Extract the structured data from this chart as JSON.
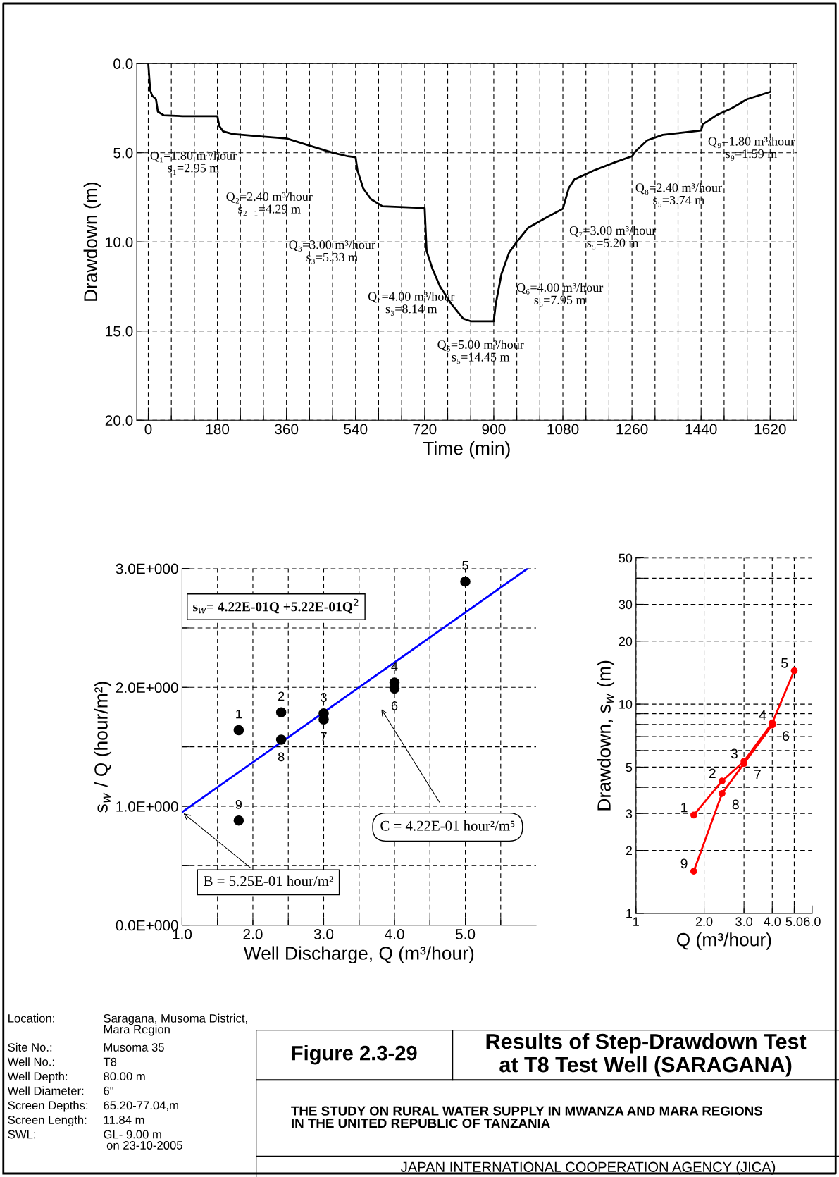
{
  "chart_data": [
    {
      "type": "line",
      "xlabel": "Time (min)",
      "ylabel": "Drawdown (m)",
      "x": [
        0,
        5,
        10,
        20,
        25,
        40,
        90,
        180,
        185,
        195,
        220,
        300,
        360,
        420,
        480,
        520,
        540,
        545,
        560,
        580,
        610,
        720,
        725,
        740,
        760,
        790,
        820,
        840,
        900,
        905,
        920,
        940,
        960,
        990,
        1040,
        1080,
        1095,
        1110,
        1160,
        1220,
        1260,
        1270,
        1300,
        1340,
        1440,
        1445,
        1480,
        1520,
        1560,
        1620
      ],
      "series": [
        {
          "color": "#000000",
          "values": [
            0,
            1.5,
            1.8,
            2.0,
            2.7,
            2.9,
            2.95,
            2.95,
            3.5,
            3.8,
            3.95,
            4.1,
            4.2,
            4.6,
            5.0,
            5.2,
            5.25,
            6.0,
            7.0,
            7.6,
            8.0,
            8.1,
            10.5,
            11.5,
            12.5,
            13.5,
            14.3,
            14.45,
            14.45,
            13.5,
            11.8,
            10.6,
            10.0,
            9.2,
            8.6,
            8.14,
            7.0,
            6.5,
            6.0,
            5.5,
            5.2,
            4.9,
            4.3,
            4.0,
            3.75,
            3.4,
            2.9,
            2.5,
            2.0,
            1.59
          ]
        }
      ],
      "xlim": [
        -30,
        1690
      ],
      "ylim": [
        20,
        0
      ],
      "xticks": [
        0,
        {
          "value": 60,
          "label": null
        },
        {
          "value": 120,
          "label": null
        },
        180,
        {
          "value": 240,
          "label": null
        },
        {
          "value": 300,
          "label": null
        },
        360,
        {
          "value": 420,
          "label": null
        },
        {
          "value": 480,
          "label": null
        },
        540,
        {
          "value": 600,
          "label": null
        },
        {
          "value": 660,
          "label": null
        },
        720,
        {
          "value": 780,
          "label": null
        },
        {
          "value": 840,
          "label": null
        },
        900,
        {
          "value": 960,
          "label": null
        },
        {
          "value": 1020,
          "label": null
        },
        1080,
        {
          "value": 1140,
          "label": null
        },
        {
          "value": 1200,
          "label": null
        },
        1260,
        {
          "value": 1320,
          "label": null
        },
        {
          "value": 1380,
          "label": null
        },
        1440,
        {
          "value": 1500,
          "label": null
        },
        {
          "value": 1560,
          "label": null
        },
        1620,
        {
          "value": 1680,
          "label": null
        }
      ],
      "yticks": [
        {
          "value": 0,
          "label": "0.0"
        },
        {
          "value": 5,
          "label": "5.0"
        },
        {
          "value": 10,
          "label": "10.0"
        },
        {
          "value": 15,
          "label": "15.0"
        },
        {
          "value": 20,
          "label": "20.0"
        }
      ],
      "grid": true,
      "line_style": "solid",
      "marker": "none",
      "annotations": [
        "Q₁=1.80 m³/hour\ns₁=2.95 m",
        "Q₂=2.40 m³/hour\ns₂₋₁=4.29 m",
        "Q₃=3.00 m³/hour\ns₃=5.33 m",
        "Q₄=4.00 m³/hour\ns₃=8.14 m",
        "Q₅=5.00 m³/hour\ns₅=14.45 m",
        "Q₆=4.00 m³/hour\ns₆=7.95 m",
        "Q₇=3.00 m³/hour\ns₅=5.20 m",
        "Q₈=2.40 m³/hour\ns₅=3.74 m",
        "Q₉=1.80 m³/hour\ns₉=1.59 m"
      ]
    },
    {
      "type": "scatter",
      "xlabel": "Well Discharge, Q (m³/hour)",
      "ylabel": "s$_{w}$ / Q (hour/m²)",
      "series": [
        {
          "color": "#000000",
          "x": [
            1.8,
            2.4,
            3.0,
            4.0,
            5.0,
            4.0,
            3.0,
            2.4,
            1.8
          ],
          "values": [
            1.64,
            1.79,
            1.78,
            2.04,
            2.89,
            1.99,
            1.73,
            1.56,
            0.88
          ]
        },
        {
          "type": "line",
          "color": "#0000ff",
          "x": [
            1.0,
            5.88
          ],
          "values": [
            0.95,
            3.0
          ]
        }
      ],
      "xlim": [
        1.0,
        6.0
      ],
      "ylim": [
        0,
        3
      ],
      "xticks": [
        {
          "value": 1.0,
          "label": "1.0"
        },
        {
          "value": 1.5,
          "label": null
        },
        {
          "value": 2.0,
          "label": "2.0"
        },
        {
          "value": 2.5,
          "label": null
        },
        {
          "value": 3.0,
          "label": "3.0"
        },
        {
          "value": 3.5,
          "label": null
        },
        {
          "value": 4.0,
          "label": "4.0"
        },
        {
          "value": 4.5,
          "label": null
        },
        {
          "value": 5.0,
          "label": "5.0"
        },
        {
          "value": 5.5,
          "label": null
        }
      ],
      "yticks": [
        {
          "value": 0,
          "label": "0.0E+000"
        },
        {
          "value": 0.5,
          "label": null
        },
        {
          "value": 1,
          "label": "1.0E+000"
        },
        {
          "value": 1.5,
          "label": null
        },
        {
          "value": 2,
          "label": "2.0E+000"
        },
        {
          "value": 2.5,
          "label": null
        },
        {
          "value": 3,
          "label": "3.0E+000"
        }
      ],
      "grid": true,
      "annotations": [
        {
          "text": "1",
          "x": 1.8,
          "y": 1.64
        },
        {
          "text": "2",
          "x": 2.4,
          "y": 1.79
        },
        {
          "text": "3",
          "x": 3.0,
          "y": 1.78
        },
        {
          "text": "4",
          "x": 4.0,
          "y": 2.04
        },
        {
          "text": "5",
          "x": 5.0,
          "y": 2.89
        },
        {
          "text": "6",
          "x": 4.0,
          "y": 1.99
        },
        {
          "text": "7",
          "x": 3.0,
          "y": 1.73
        },
        {
          "text": "8",
          "x": 2.4,
          "y": 1.56
        },
        {
          "text": "9",
          "x": 1.8,
          "y": 0.88
        },
        "s$_{w}$= 4.22E-01Q +5.22E-01Q$^{2}$",
        "C = 4.22E-01 hour²/m⁵",
        {
          "text": "B = 5.25E-01 hour/m²",
          "x": 1.0,
          "y": 0.95
        }
      ]
    },
    {
      "type": "line",
      "xlabel": "Q (m³/hour)",
      "ylabel": "Drawdown, s$_{w}$ (m)",
      "log": "xy",
      "series": [
        {
          "color": "#ff0000",
          "x": [
            1.8,
            2.4,
            3.0,
            4.0,
            5.0
          ],
          "values": [
            2.95,
            4.29,
            5.33,
            8.14,
            14.45
          ]
        },
        {
          "color": "#ff0000",
          "x": [
            4.0,
            3.0,
            2.4,
            1.8
          ],
          "values": [
            7.95,
            5.2,
            3.74,
            1.59
          ]
        }
      ],
      "xlim": [
        1,
        6
      ],
      "ylim": [
        1,
        50
      ],
      "xticks": [
        1,
        {
          "value": 2,
          "label": "2.0"
        },
        {
          "value": 3,
          "label": "3.0"
        },
        {
          "value": 4,
          "label": "4.0"
        },
        {
          "value": 5,
          "label": "5.0"
        },
        {
          "value": 6,
          "label": "6.0"
        }
      ],
      "yticks": [
        1,
        2,
        3,
        {
          "value": 4,
          "label": null
        },
        5,
        {
          "value": 6,
          "label": null
        },
        {
          "value": 7,
          "label": null
        },
        {
          "value": 8,
          "label": null
        },
        {
          "value": 9,
          "label": null
        },
        10,
        20,
        30,
        {
          "value": 40,
          "label": null
        },
        50
      ],
      "grid": true,
      "marker": "circle",
      "line_style": "solid",
      "annotations": [
        {
          "text": "1",
          "x": 1.8,
          "y": 2.95
        },
        {
          "text": "2",
          "x": 2.4,
          "y": 4.29
        },
        {
          "text": "3",
          "x": 3.0,
          "y": 5.33
        },
        {
          "text": "4",
          "x": 4.0,
          "y": 8.14
        },
        {
          "text": "5",
          "x": 5.0,
          "y": 14.45
        },
        {
          "text": "6",
          "x": 4.0,
          "y": 7.95
        },
        {
          "text": "7",
          "x": 3.0,
          "y": 5.2
        },
        {
          "text": "8",
          "x": 2.4,
          "y": 3.74
        },
        {
          "text": "9",
          "x": 1.8,
          "y": 1.59
        }
      ]
    },
    {
      "type": "other",
      "annotations": [
        "Location:",
        "Saragana, Musoma District,\nMara Region",
        "Site No.:",
        "Musoma 35",
        "Well No.:",
        "T8",
        "Well Depth:",
        "80.00 m",
        "Well Diameter:",
        "6\"",
        "Screen Depths:",
        "65.20-77.04,m",
        "Screen Length:",
        "11.84 m",
        "SWL:",
        "GL- 9.00 m\n on 23-10-2005"
      ]
    },
    {
      "type": "other",
      "title": "Results of Step-Drawdown Test\nat T8 Test Well (SARAGANA)",
      "annotations": [
        "Figure 2.3-29",
        "THE STUDY ON RURAL WATER SUPPLY IN MWANZA AND MARA REGIONS\nIN THE UNITED REPUBLIC OF TANZANIA",
        "JAPAN INTERNATIONAL COOPERATION AGENCY (JICA)"
      ]
    }
  ]
}
